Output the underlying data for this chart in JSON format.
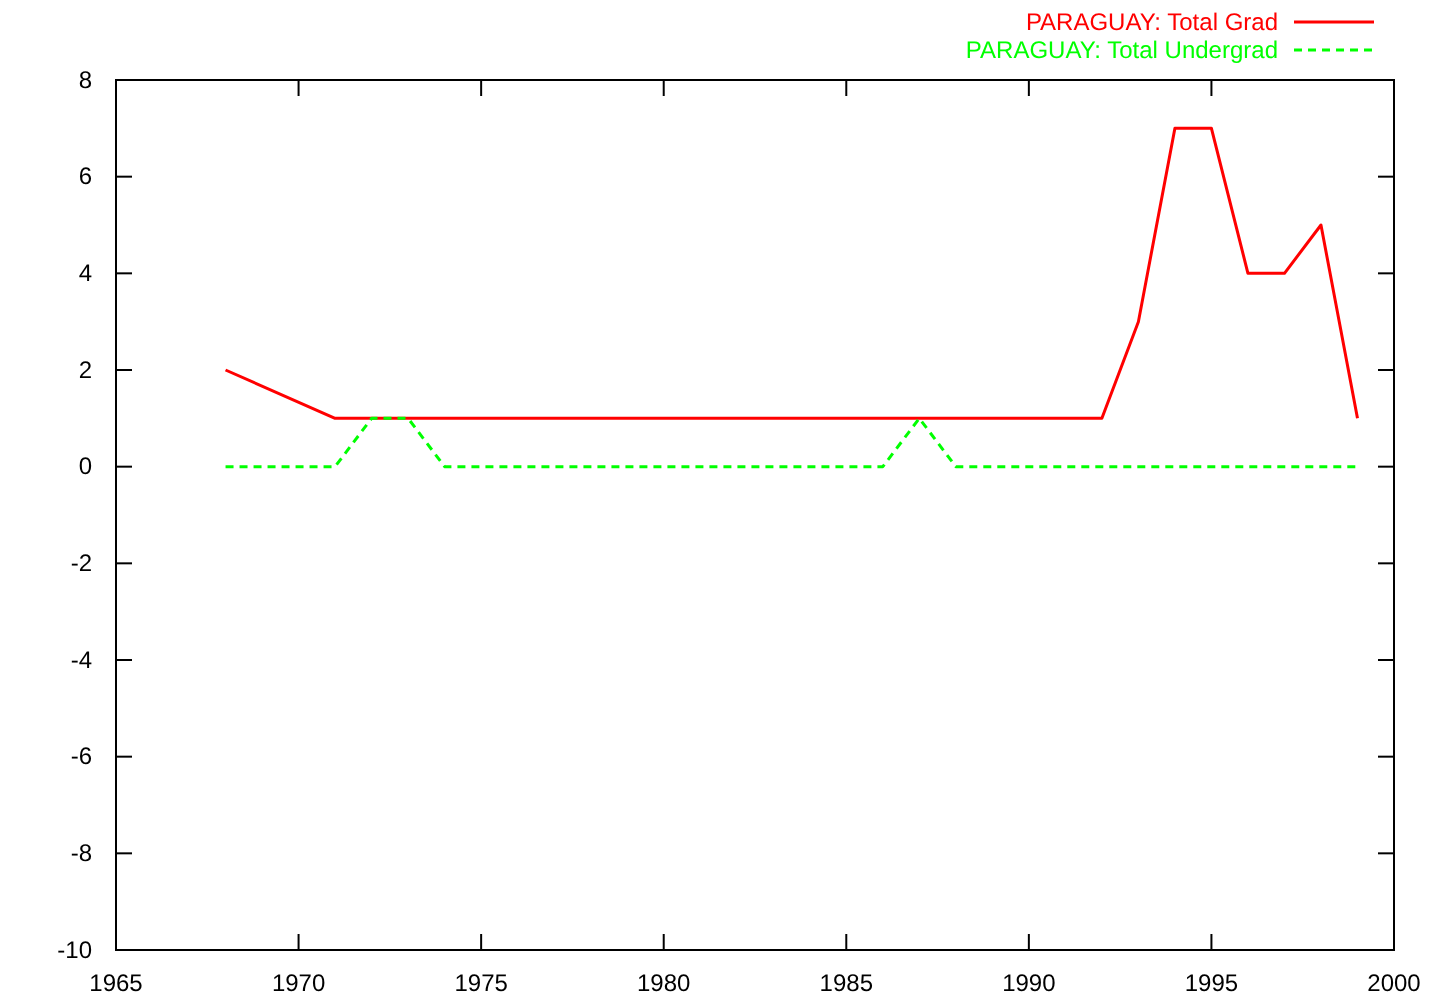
{
  "chart_data": {
    "type": "line",
    "x": [
      1968,
      1971,
      1972,
      1973,
      1974,
      1975,
      1976,
      1977,
      1978,
      1979,
      1980,
      1981,
      1982,
      1983,
      1984,
      1985,
      1986,
      1987,
      1988,
      1989,
      1990,
      1991,
      1992,
      1993,
      1994,
      1995,
      1996,
      1997,
      1998,
      1999
    ],
    "series": [
      {
        "name": "PARAGUAY: Total Grad",
        "color": "#ff0000",
        "line_style": "solid",
        "values": [
          2,
          1,
          1,
          1,
          1,
          1,
          1,
          1,
          1,
          1,
          1,
          1,
          1,
          1,
          1,
          1,
          1,
          1,
          1,
          1,
          1,
          1,
          1,
          3,
          7,
          7,
          4,
          4,
          5,
          1
        ]
      },
      {
        "name": "PARAGUAY: Total Undergrad",
        "color": "#00ff00",
        "line_style": "dashed",
        "values": [
          0,
          0,
          1,
          1,
          0,
          0,
          0,
          0,
          0,
          0,
          0,
          0,
          0,
          0,
          0,
          0,
          0,
          1,
          0,
          0,
          0,
          0,
          0,
          0,
          0,
          0,
          0,
          0,
          0,
          0
        ]
      }
    ],
    "xlim": [
      1965,
      2000
    ],
    "xticks": [
      1965,
      1970,
      1975,
      1980,
      1985,
      1990,
      1995,
      2000
    ],
    "ylim": [
      -10,
      8
    ],
    "yticks": [
      -10,
      -8,
      -6,
      -4,
      -2,
      0,
      2,
      4,
      6,
      8
    ],
    "grid": false,
    "legend": "top right",
    "marker": "none"
  }
}
